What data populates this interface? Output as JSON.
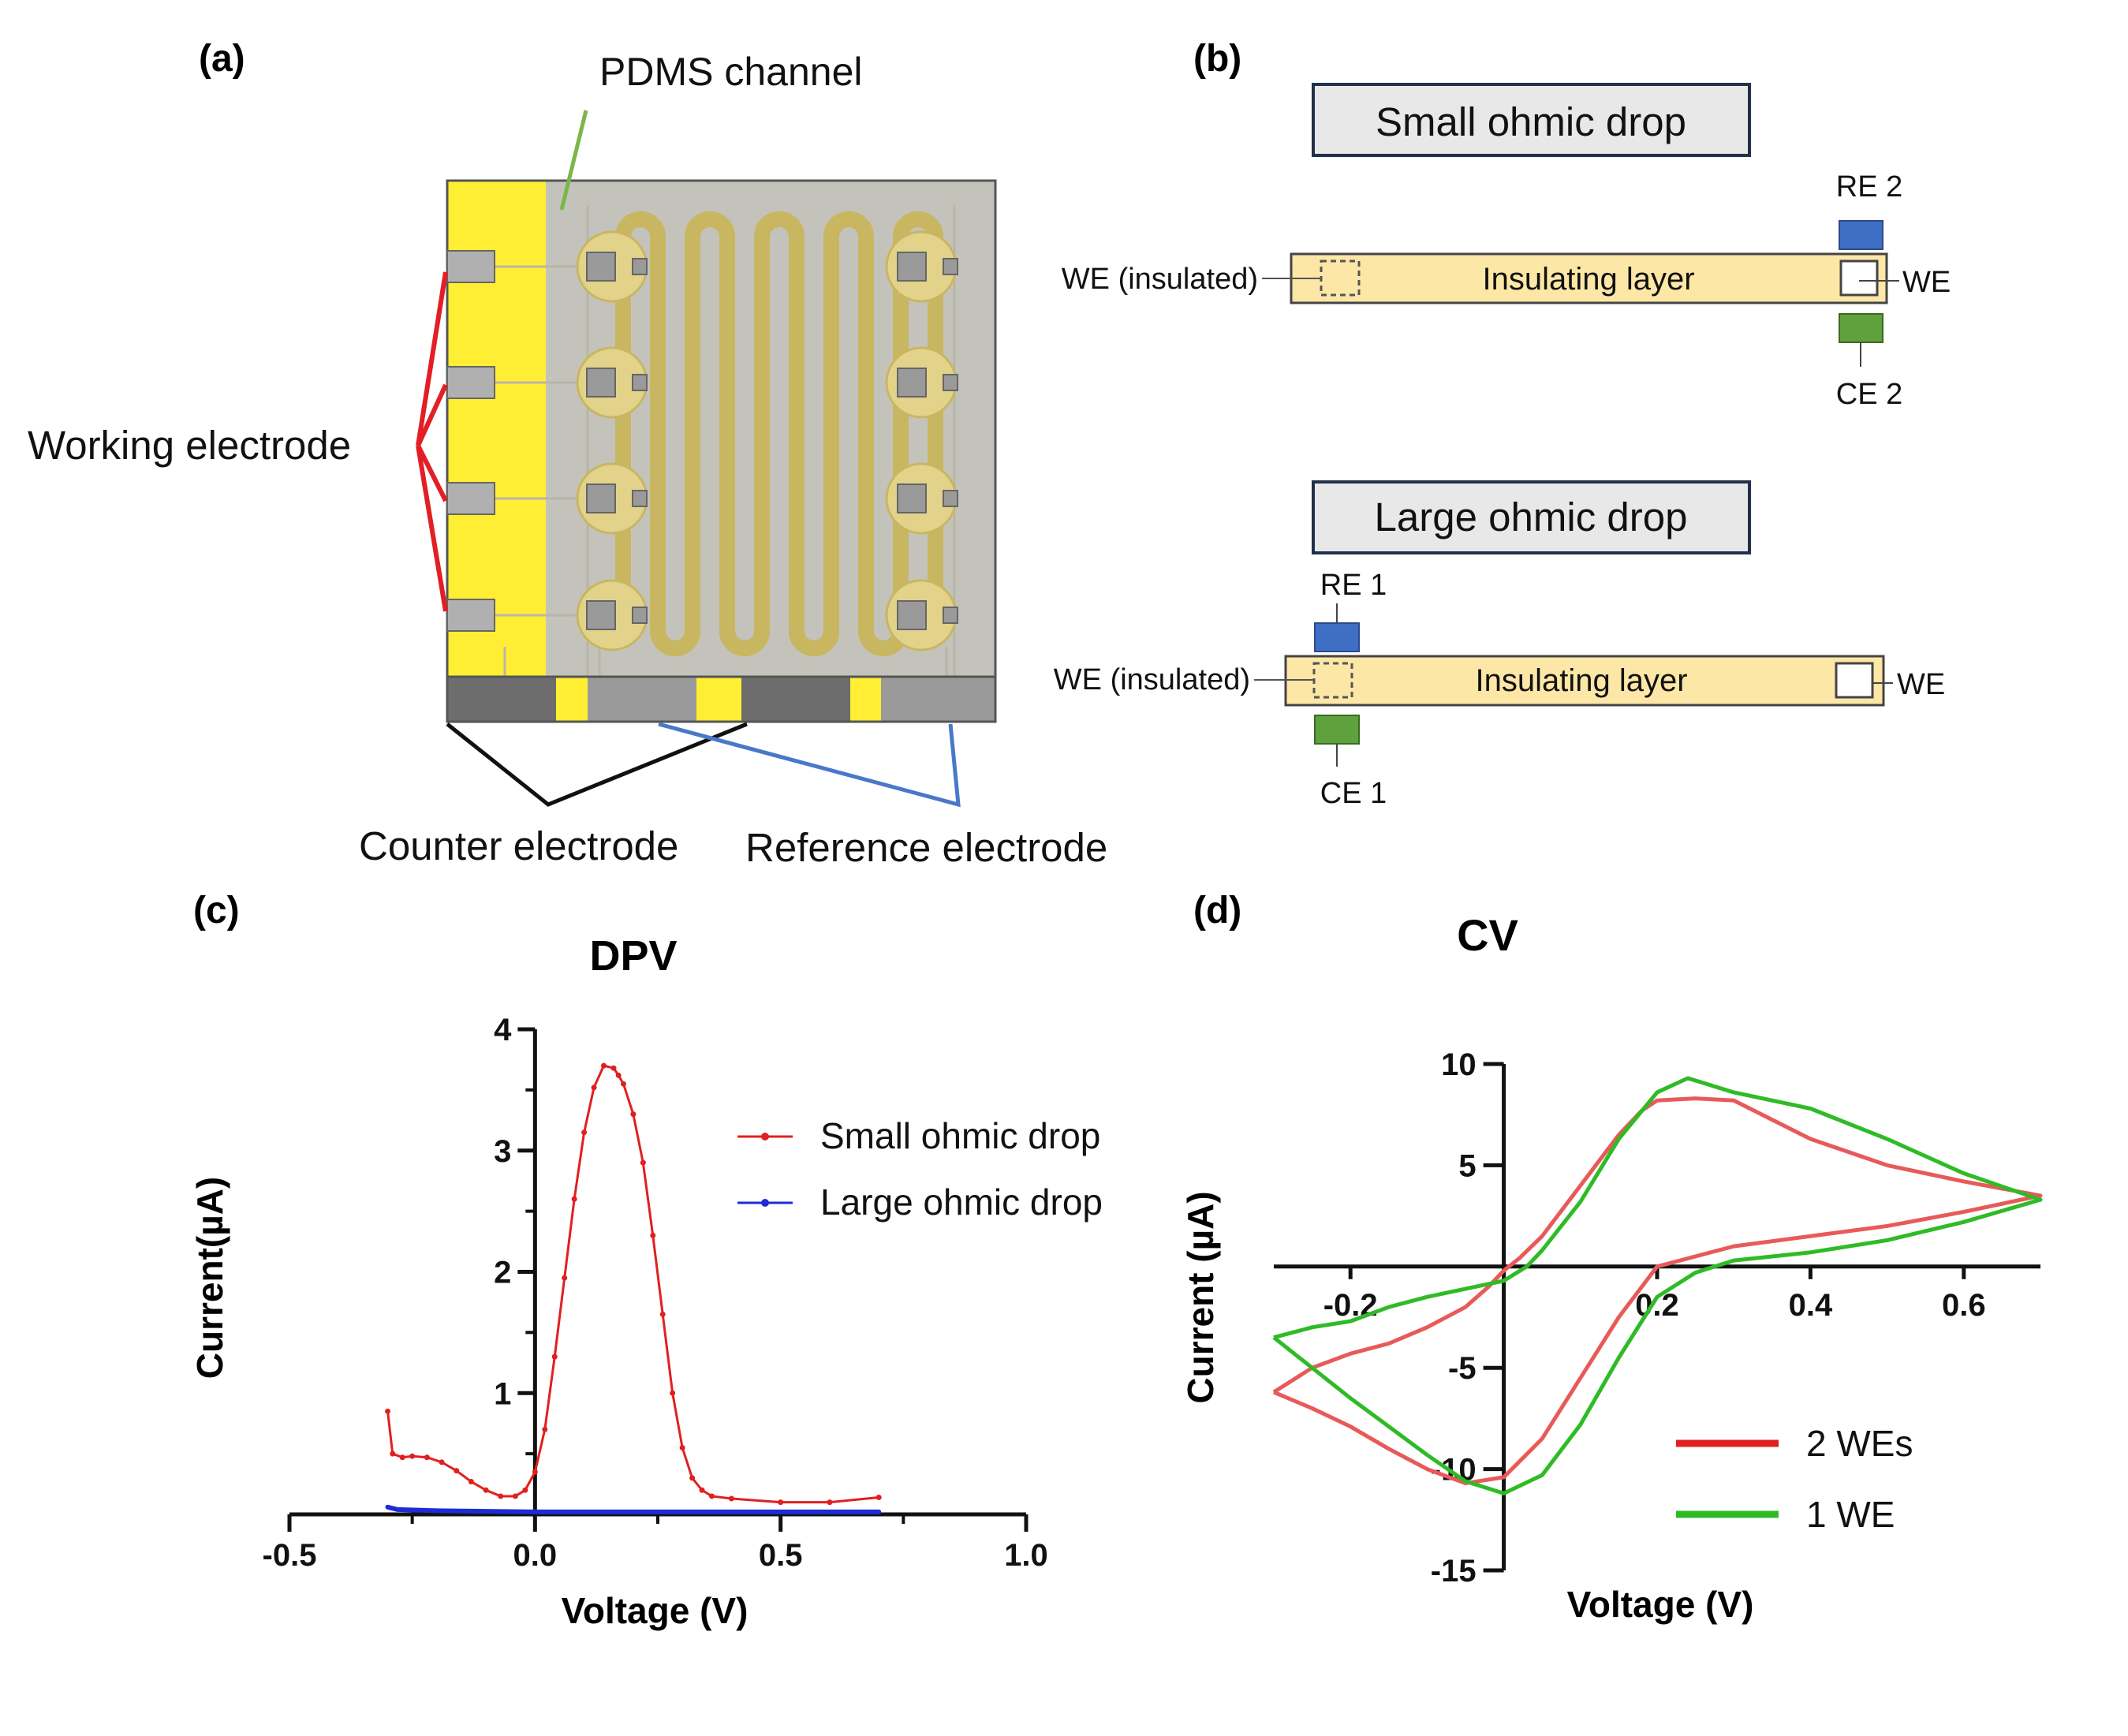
{
  "colors": {
    "yellow": "#ffee33",
    "chip_gray": "#c4c3bb",
    "pad_gray": "#9e9e9e",
    "bar_gray": "#7c7c7c",
    "channel": "#ead98c",
    "insul": "#fde7a6",
    "re_blue": "#3f6fc4",
    "ce_green": "#5fa13c",
    "red": "#e02020",
    "blue": "#1f2bd6",
    "cv_red": "#e85a5a",
    "cv_green": "#2fbb26"
  },
  "panel_a": {
    "label": "(a)",
    "pdms_label": "PDMS channel",
    "working_label": "Working electrode",
    "counter_label": "Counter electrode",
    "reference_label": "Reference electrode"
  },
  "panel_b": {
    "label": "(b)",
    "small": {
      "title": "Small ohmic drop",
      "re": "RE 2",
      "ce": "CE 2",
      "we_ins": "WE (insulated)",
      "layer": "Insulating layer",
      "we": "WE"
    },
    "large": {
      "title": "Large ohmic drop",
      "re": "RE 1",
      "ce": "CE 1",
      "we_ins": "WE (insulated)",
      "layer": "Insulating layer",
      "we": "WE"
    }
  },
  "panel_c": {
    "label": "(c)"
  },
  "panel_d": {
    "label": "(d)"
  },
  "chart_data": [
    {
      "type": "line",
      "title": "DPV",
      "xlabel": "Voltage (V)",
      "ylabel": "Current(µA)",
      "xlim": [
        -0.5,
        1.0
      ],
      "ylim": [
        0,
        4
      ],
      "xticks": [
        -0.5,
        0.0,
        0.5,
        1.0
      ],
      "xtick_labels": [
        "-0.5",
        "0.0",
        "0.5",
        "1.0"
      ],
      "yticks": [
        1,
        2,
        3,
        4
      ],
      "ytick_labels": [
        "1",
        "2",
        "3",
        "4"
      ],
      "legend_position": "top-right",
      "series": [
        {
          "name": "Small ohmic drop",
          "color": "#e02020",
          "x": [
            -0.3,
            -0.29,
            -0.27,
            -0.25,
            -0.22,
            -0.19,
            -0.16,
            -0.13,
            -0.1,
            -0.07,
            -0.04,
            -0.02,
            0.0,
            0.02,
            0.04,
            0.06,
            0.08,
            0.1,
            0.12,
            0.14,
            0.16,
            0.17,
            0.18,
            0.2,
            0.22,
            0.24,
            0.26,
            0.28,
            0.3,
            0.32,
            0.34,
            0.36,
            0.4,
            0.5,
            0.6,
            0.7
          ],
          "y": [
            0.85,
            0.5,
            0.47,
            0.48,
            0.47,
            0.43,
            0.36,
            0.27,
            0.2,
            0.15,
            0.15,
            0.2,
            0.35,
            0.7,
            1.3,
            1.95,
            2.6,
            3.15,
            3.52,
            3.7,
            3.68,
            3.62,
            3.55,
            3.3,
            2.9,
            2.3,
            1.65,
            1.0,
            0.55,
            0.3,
            0.2,
            0.15,
            0.13,
            0.1,
            0.1,
            0.14
          ]
        },
        {
          "name": "Large ohmic drop",
          "color": "#1f2bd6",
          "x": [
            -0.3,
            -0.28,
            -0.2,
            0.0,
            0.3,
            0.5,
            0.7
          ],
          "y": [
            0.06,
            0.04,
            0.03,
            0.02,
            0.02,
            0.02,
            0.02
          ]
        }
      ]
    },
    {
      "type": "line",
      "title": "CV",
      "xlabel": "Voltage (V)",
      "ylabel": "Current (µA)",
      "xlim": [
        -0.3,
        0.7
      ],
      "ylim": [
        -15,
        10
      ],
      "xticks": [
        -0.2,
        0.2,
        0.4,
        0.6
      ],
      "xtick_labels": [
        "-0.2",
        "0.2",
        "0.4",
        "0.6"
      ],
      "yticks": [
        10,
        5,
        -5,
        -10,
        -15
      ],
      "ytick_labels": [
        "10",
        "5",
        "-5",
        "-10",
        "-15"
      ],
      "legend_position": "bottom-right",
      "series": [
        {
          "name": "2 WEs",
          "color": "#e85a5a",
          "x": [
            -0.3,
            -0.25,
            -0.2,
            -0.15,
            -0.1,
            -0.05,
            0.0,
            0.05,
            0.1,
            0.15,
            0.2,
            0.3,
            0.4,
            0.5,
            0.6,
            0.7,
            0.6,
            0.5,
            0.4,
            0.3,
            0.25,
            0.2,
            0.18,
            0.15,
            0.1,
            0.05,
            0.02,
            0.0,
            -0.02,
            -0.05,
            -0.1,
            -0.15,
            -0.2,
            -0.25,
            -0.3
          ],
          "y": [
            -6.2,
            -7.0,
            -7.9,
            -9.0,
            -10.0,
            -10.7,
            -10.4,
            -8.5,
            -5.5,
            -2.5,
            0.0,
            1.0,
            1.5,
            2.0,
            2.7,
            3.5,
            4.2,
            5.0,
            6.3,
            8.2,
            8.3,
            8.2,
            7.7,
            6.5,
            4.0,
            1.5,
            0.4,
            -0.2,
            -1.0,
            -2.0,
            -3.0,
            -3.8,
            -4.3,
            -5.0,
            -6.2
          ]
        },
        {
          "name": "1 WE",
          "color": "#2fbb26",
          "x": [
            -0.3,
            -0.25,
            -0.2,
            -0.15,
            -0.1,
            -0.05,
            0.0,
            0.05,
            0.1,
            0.15,
            0.2,
            0.25,
            0.3,
            0.4,
            0.5,
            0.6,
            0.7,
            0.6,
            0.5,
            0.4,
            0.3,
            0.24,
            0.2,
            0.15,
            0.1,
            0.05,
            0.03,
            0.0,
            -0.05,
            -0.1,
            -0.15,
            -0.2,
            -0.25,
            -0.3
          ],
          "y": [
            -3.5,
            -5.0,
            -6.5,
            -7.9,
            -9.3,
            -10.6,
            -11.2,
            -10.3,
            -7.8,
            -4.5,
            -1.5,
            -0.3,
            0.3,
            0.7,
            1.3,
            2.2,
            3.3,
            4.6,
            6.3,
            7.8,
            8.6,
            9.3,
            8.6,
            6.3,
            3.2,
            0.8,
            0.0,
            -0.7,
            -1.1,
            -1.5,
            -2.0,
            -2.7,
            -3.0,
            -3.5
          ]
        }
      ]
    }
  ]
}
